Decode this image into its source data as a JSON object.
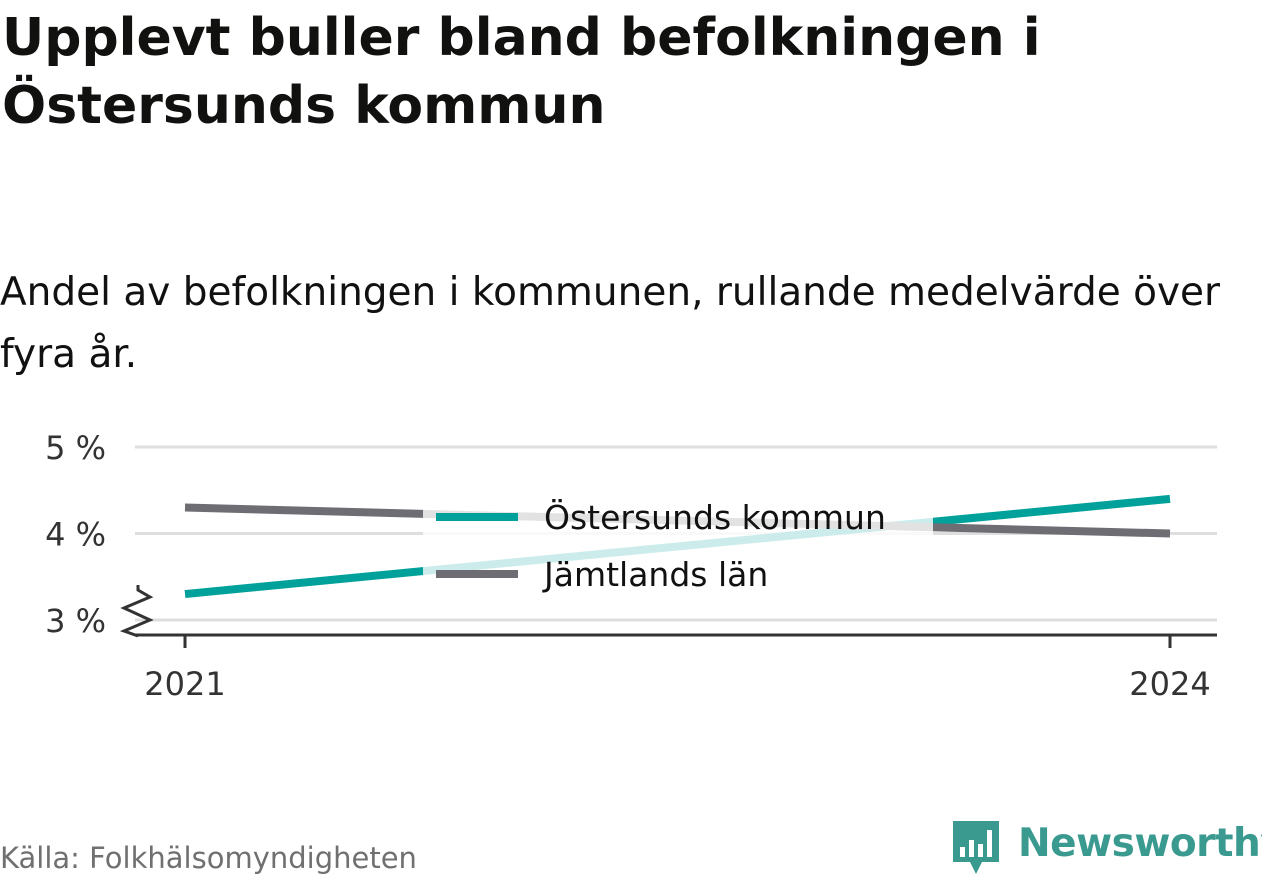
{
  "title": "Upplevt buller bland befolkningen i Östersunds kommun",
  "subtitle": "Andel av befolkningen i kommunen, rullande medelvärde över fyra år.",
  "source": "Källa: Folkhälsomyndigheten",
  "brand": {
    "name": "Newsworthy",
    "icon": "bar-chart-speech-bubble-icon",
    "color": "#3a9a8f"
  },
  "chart_data": {
    "type": "line",
    "x": [
      2021,
      2024
    ],
    "x_tick_labels": [
      "2021",
      "2024"
    ],
    "y_ticks": [
      3,
      4,
      5
    ],
    "y_tick_labels": [
      "3 %",
      "4 %",
      "5 %"
    ],
    "ylim": [
      3,
      5
    ],
    "y_axis_break": true,
    "grid": true,
    "legend_position": "center",
    "series": [
      {
        "name": "Östersunds kommun",
        "values": [
          3.3,
          4.4
        ],
        "color": "#00a19a"
      },
      {
        "name": "Jämtlands län",
        "values": [
          4.3,
          4.0
        ],
        "color": "#6e6d73"
      }
    ]
  }
}
